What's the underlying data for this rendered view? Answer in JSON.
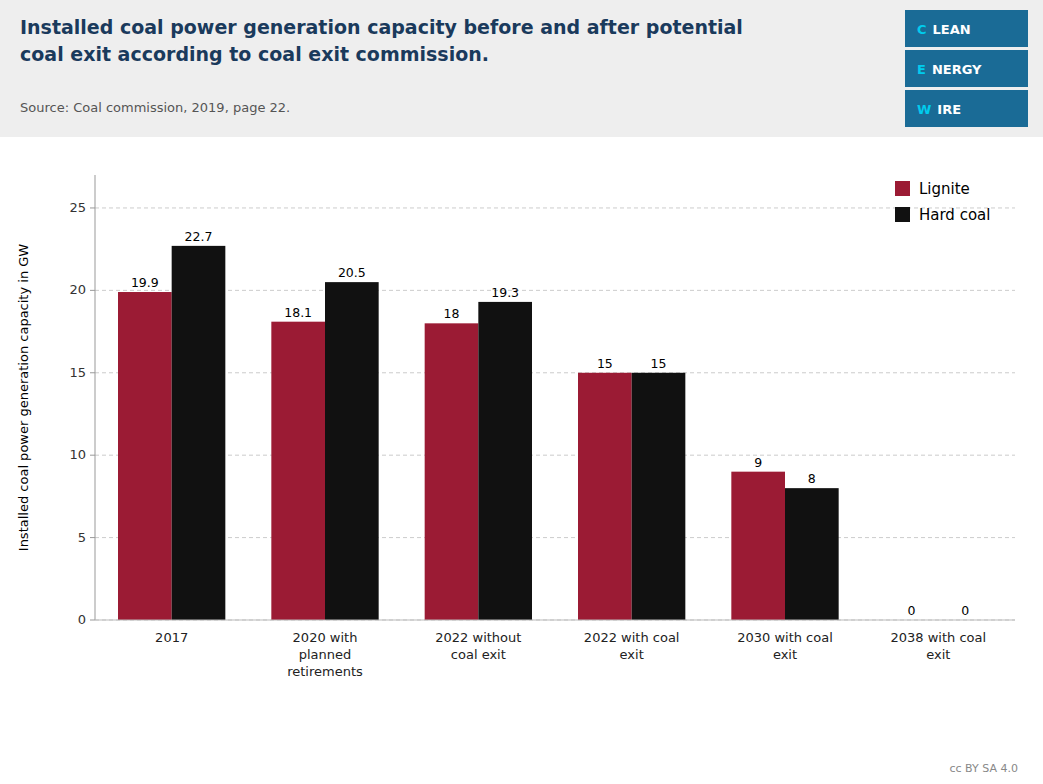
{
  "chart_data": {
    "type": "bar",
    "title": "Installed coal power generation capacity before and after potential\ncoal exit according to coal exit commission.",
    "annotations": [
      "Source: Coal commission, 2019, page 22.",
      "CLEAN",
      "ENERGY",
      "WIRE",
      "cc  BY SA 4.0"
    ],
    "categories": [
      "2017",
      "2020 with\nplanned\nretirements",
      "2022 without\ncoal exit",
      "2022 with coal\nexit",
      "2030 with coal\nexit",
      "2038 with coal\nexit"
    ],
    "series": [
      {
        "name": "Lignite",
        "color": "#9B1B34",
        "values": [
          19.9,
          18.1,
          18.0,
          15.0,
          9.0,
          0.0
        ]
      },
      {
        "name": "Hard coal",
        "color": "#111111",
        "values": [
          22.7,
          20.5,
          19.3,
          15.0,
          8.0,
          0.0
        ]
      }
    ],
    "y_label": "Installed coal power generation capacity in GW",
    "ylim": [
      0,
      27
    ],
    "yticks": [
      0,
      5,
      10,
      15,
      20,
      25
    ],
    "grid": true,
    "legend": "top-right",
    "data_labels": true
  }
}
